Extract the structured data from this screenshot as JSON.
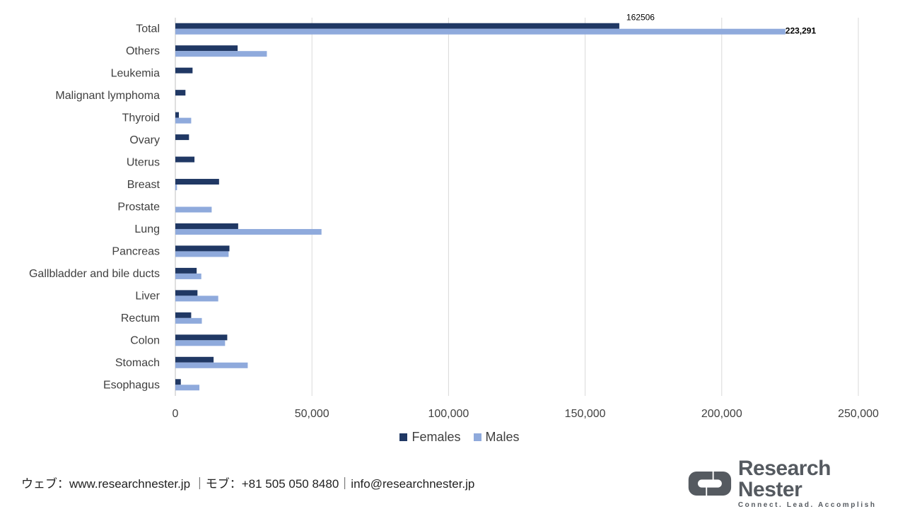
{
  "chart_data": {
    "type": "bar",
    "orientation": "horizontal",
    "categories": [
      "Total",
      "Others",
      "Leukemia",
      "Malignant lymphoma",
      "Thyroid",
      "Ovary",
      "Uterus",
      "Breast",
      "Prostate",
      "Lung",
      "Pancreas",
      "Gallbladder and bile ducts",
      "Liver",
      "Rectum",
      "Colon",
      "Stomach",
      "Esophagus"
    ],
    "series": [
      {
        "name": "Females",
        "values": [
          162506,
          22800,
          6300,
          3700,
          1300,
          5000,
          7000,
          16000,
          0,
          23000,
          19800,
          7800,
          8100,
          5800,
          19000,
          14000,
          2000
        ],
        "data_labels": [
          "162506",
          "",
          "",
          "",
          "",
          "",
          "",
          "",
          "",
          "",
          "",
          "",
          "",
          "",
          "",
          "",
          ""
        ]
      },
      {
        "name": "Males",
        "values": [
          223291,
          33500,
          0,
          0,
          5800,
          0,
          0,
          600,
          13300,
          53500,
          19500,
          9500,
          15700,
          9700,
          18200,
          26500,
          8800
        ],
        "data_labels": [
          "223,291",
          "",
          "",
          "",
          "",
          "",
          "",
          "",
          "",
          "",
          "",
          "",
          "",
          "",
          "",
          "",
          ""
        ]
      }
    ],
    "xlim": [
      0,
      250000
    ],
    "xticks": [
      "0",
      "50,000",
      "100,000",
      "150,000",
      "200,000",
      "250,000"
    ],
    "xtick_values": [
      0,
      50000,
      100000,
      150000,
      200000,
      250000
    ],
    "grid": true,
    "legend": "bottom",
    "colors": {
      "Females": "#203864",
      "Males": "#8FAADC",
      "grid": "#D9D9D9"
    }
  },
  "footer": {
    "contact": "ウェブ：www.researchnester.jp ｜モブ：+81 505 050 8480｜info@researchnester.jp"
  },
  "logo": {
    "name": "Research Nester",
    "tagline": "Connect. Lead. Accomplish"
  }
}
